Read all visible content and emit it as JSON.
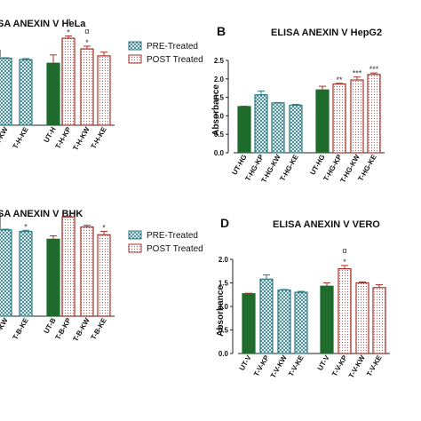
{
  "colors": {
    "dark_green": "#1f6b2c",
    "teal": "#2e7b83",
    "red": "#a7322b"
  },
  "chart_data": [
    {
      "type": "bar",
      "panel_letter": "",
      "title": "SA ANEXIN V HeLa",
      "ylabel": "",
      "ylim": [
        0,
        2.4
      ],
      "categories": [
        "T-H-KW",
        "T-H-KE",
        "UT-H",
        "T-H-KP",
        "T-H-KW",
        "T-H-KE"
      ],
      "values": [
        1.45,
        1.42,
        1.34,
        1.88,
        1.65,
        1.5
      ],
      "errors": [
        0.01,
        0.02,
        0.18,
        0.05,
        0.06,
        0.08
      ],
      "styles": [
        "pre",
        "pre",
        "control",
        "post",
        "post",
        "post"
      ],
      "annotations": [
        "",
        "",
        "",
        "*",
        "*",
        ""
      ],
      "alpha_marks": [
        "",
        "",
        "",
        "α",
        "α",
        ""
      ],
      "legend": [
        "PRE-Treated",
        "POST Treated"
      ]
    },
    {
      "type": "bar",
      "panel_letter": "B",
      "title": "ELISA ANEXIN V HepG2",
      "ylabel": "Absorbance",
      "ylim": [
        0,
        2.5
      ],
      "yticks": [
        "0.0",
        "0.5",
        "1.0",
        "1.5",
        "2.0",
        "2.5"
      ],
      "categories": [
        "UT-HG",
        "T-HG-KP",
        "T-HG-KW",
        "T-HG-KE",
        "UT-HG",
        "T-HG-KP",
        "T-HG-KW",
        "T-HG-KE"
      ],
      "values": [
        1.25,
        1.57,
        1.35,
        1.29,
        1.7,
        1.86,
        1.97,
        2.12
      ],
      "errors": [
        0.01,
        0.1,
        0.01,
        0.02,
        0.1,
        0.02,
        0.08,
        0.04
      ],
      "styles": [
        "control",
        "pre",
        "pre",
        "pre",
        "control",
        "post",
        "post",
        "post"
      ],
      "annotations": [
        "",
        "",
        "",
        "",
        "",
        "**",
        "***",
        "***"
      ]
    },
    {
      "type": "bar",
      "panel_letter": "",
      "title": "SA ANEXIN V BHK",
      "ylabel": "",
      "ylim": [
        0,
        2.5
      ],
      "categories": [
        "T-B-KW",
        "T-B-KE",
        "UT-B",
        "T-B-KP",
        "T-B-KW",
        "T-B-KE"
      ],
      "values": [
        1.55,
        1.52,
        1.38,
        1.78,
        1.6,
        1.46
      ],
      "errors": [
        0.01,
        0.02,
        0.06,
        0.01,
        0.03,
        0.06
      ],
      "styles": [
        "pre",
        "pre",
        "control",
        "post",
        "post",
        "post"
      ],
      "annotations": [
        "",
        "*",
        "",
        "",
        "",
        "*"
      ],
      "legend": [
        "PRE-Treated",
        "POST Treated"
      ]
    },
    {
      "type": "bar",
      "panel_letter": "D",
      "title": "ELISA ANEXIN V VERO",
      "ylabel": "Absorbance",
      "ylim": [
        0,
        2.0
      ],
      "yticks": [
        "0.0",
        "0.5",
        "1.0",
        "1.5",
        "2.0"
      ],
      "categories": [
        "UT-V",
        "T-V-KP",
        "T-V-KW",
        "T-V-KE",
        "UT-V",
        "T-V-KP",
        "T-V-KW",
        "T-V-KE"
      ],
      "values": [
        1.27,
        1.58,
        1.35,
        1.3,
        1.43,
        1.8,
        1.5,
        1.4
      ],
      "errors": [
        0.01,
        0.09,
        0.01,
        0.02,
        0.07,
        0.07,
        0.02,
        0.06
      ],
      "styles": [
        "control",
        "pre",
        "pre",
        "pre",
        "control",
        "post",
        "post",
        "post"
      ],
      "annotations": [
        "",
        "",
        "",
        "",
        "",
        "*",
        "",
        ""
      ],
      "alpha_marks": [
        "",
        "",
        "",
        "",
        "",
        "α",
        "",
        ""
      ]
    }
  ]
}
